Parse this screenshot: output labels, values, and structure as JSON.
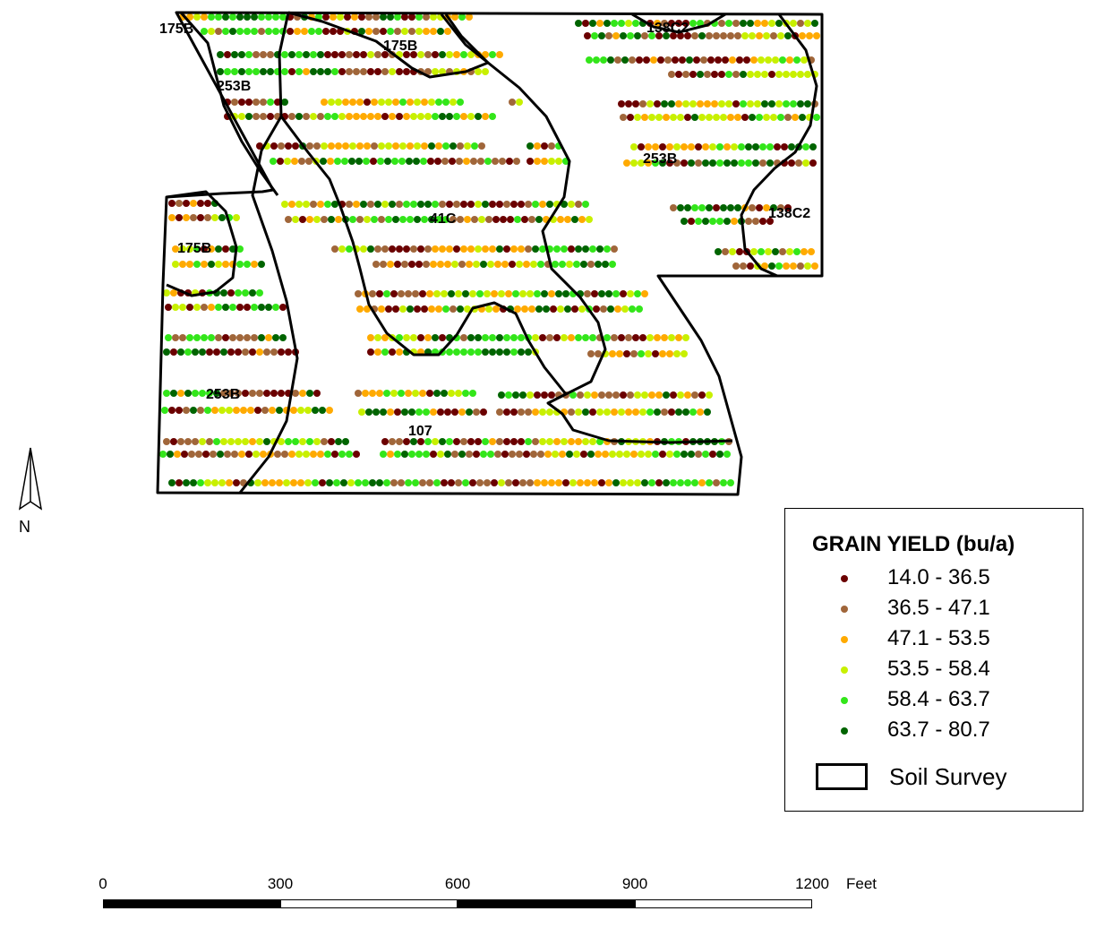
{
  "map": {
    "soil_labels": [
      {
        "text": "175B"
      },
      {
        "text": "175B"
      },
      {
        "text": "138C2"
      },
      {
        "text": "253B"
      },
      {
        "text": "253B"
      },
      {
        "text": "41C"
      },
      {
        "text": "138C2"
      },
      {
        "text": "175B"
      },
      {
        "text": "253B"
      },
      {
        "text": "107"
      }
    ],
    "north_arrow": {
      "label": "N",
      "icon": "north-arrow-icon"
    }
  },
  "legend": {
    "title": "GRAIN YIELD (bu/a)",
    "classes": [
      {
        "label": "14.0 - 36.5",
        "color": "#6b0000",
        "min": 14.0,
        "max": 36.5
      },
      {
        "label": "36.5 - 47.1",
        "color": "#a0663a",
        "min": 36.5,
        "max": 47.1
      },
      {
        "label": "47.1 - 53.5",
        "color": "#ffaa00",
        "min": 47.1,
        "max": 53.5
      },
      {
        "label": "53.5 - 58.4",
        "color": "#c8f000",
        "min": 53.5,
        "max": 58.4
      },
      {
        "label": "58.4 - 63.7",
        "color": "#33e61a",
        "min": 58.4,
        "max": 63.7
      },
      {
        "label": "63.7 - 80.7",
        "color": "#006400",
        "min": 63.7,
        "max": 80.7
      }
    ],
    "soil_survey_label": "Soil Survey"
  },
  "scale_bar": {
    "ticks": [
      "0",
      "300",
      "600",
      "900",
      "1200"
    ],
    "unit": "Feet"
  }
}
